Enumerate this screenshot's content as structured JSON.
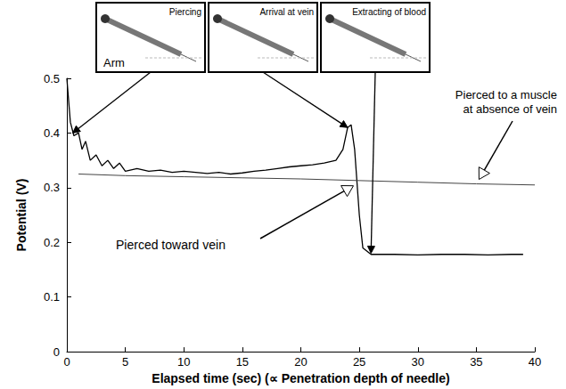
{
  "chart_data": {
    "type": "line",
    "x_label": "Elapsed time (sec) (∝ Penetration depth of needle)",
    "y_label": "Potential (V)",
    "xlim": [
      0,
      40
    ],
    "xticks": [
      0,
      5,
      10,
      15,
      20,
      25,
      30,
      35,
      40
    ],
    "ylim": [
      0,
      0.5
    ],
    "yticks": [
      0,
      0.1,
      0.2,
      0.3,
      0.4,
      0.5
    ],
    "grid": false,
    "series": [
      {
        "name": "Pierced toward vein",
        "color": "#000000",
        "line_style": "solid",
        "x": [
          0,
          0.3,
          0.6,
          1,
          1.3,
          1.6,
          2,
          2.5,
          3,
          3.5,
          4,
          4.5,
          5,
          6,
          7,
          8,
          9,
          10,
          11,
          12,
          13,
          14,
          15,
          16,
          17,
          18,
          19,
          20,
          21,
          22,
          23,
          23.6,
          24,
          24.3,
          24.6,
          25,
          25.3,
          26,
          28,
          30,
          32,
          34,
          36,
          38,
          39
        ],
        "values": [
          0.5,
          0.42,
          0.395,
          0.4,
          0.37,
          0.385,
          0.35,
          0.36,
          0.34,
          0.35,
          0.335,
          0.345,
          0.33,
          0.335,
          0.33,
          0.332,
          0.328,
          0.33,
          0.328,
          0.326,
          0.328,
          0.325,
          0.327,
          0.33,
          0.332,
          0.335,
          0.338,
          0.34,
          0.342,
          0.345,
          0.35,
          0.37,
          0.41,
          0.415,
          0.37,
          0.25,
          0.19,
          0.178,
          0.178,
          0.177,
          0.178,
          0.178,
          0.177,
          0.178,
          0.178
        ]
      },
      {
        "name": "Pierced to a muscle at absence of vein",
        "color": "#444444",
        "line_style": "solid",
        "x": [
          1,
          5,
          10,
          15,
          20,
          25,
          30,
          35,
          40
        ],
        "values": [
          0.325,
          0.322,
          0.32,
          0.318,
          0.316,
          0.313,
          0.31,
          0.307,
          0.305
        ]
      }
    ],
    "annotations": [
      {
        "text": "Piercing",
        "caption": "Arm",
        "x": 0.5,
        "y": 0.4
      },
      {
        "text": "Arrival at vein",
        "x": 24,
        "y": 0.41
      },
      {
        "text": "Extracting of blood",
        "x": 26,
        "y": 0.18
      }
    ]
  }
}
